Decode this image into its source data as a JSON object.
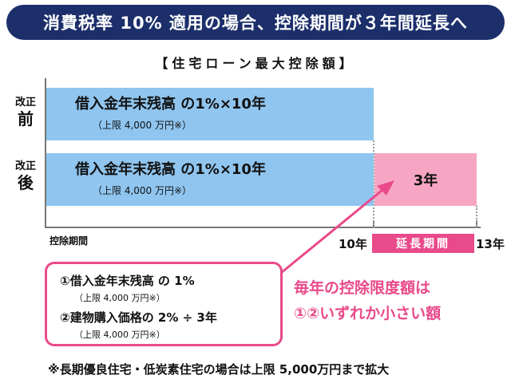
{
  "header": {
    "title": "消費税率 10% 適用の場合、控除期間が３年間延長へ"
  },
  "diagram": {
    "subtitle": "【住宅ローン最大控除額】",
    "rows": [
      {
        "label_small": "改正",
        "label_big": "前",
        "bar_text": "借入金年末残高 の1%×10年",
        "bar_note": "（上限 4,000 万円※）"
      },
      {
        "label_small": "改正",
        "label_big": "後",
        "bar_text": "借入金年末残高 の1%×10年",
        "bar_note": "（上限 4,000 万円※）",
        "extension_text": "3年"
      }
    ],
    "axis": {
      "label": "控除期間",
      "year10": "10年",
      "extension_label": "延長期間",
      "year13": "13年"
    },
    "callout": {
      "line1": "①借入金年末残高 の 1%",
      "line1_note": "（上限 4,000 万円※）",
      "line2": "②建物購入価格の 2% ÷ 3年",
      "line2_note": "（上限 4,000 万円※）"
    },
    "pink_text": {
      "line1": "毎年の控除限度額は",
      "line2": "①②いずれか小さい額"
    },
    "footnote": "※長期優良住宅・低炭素住宅の場合は上限 5,000万円まで拡大"
  },
  "colors": {
    "banner_bg": "#1c2f6b",
    "bar_blue": "#8fc5ef",
    "extension_pink": "#f6a6c3",
    "accent_pink": "#e94a8a"
  }
}
